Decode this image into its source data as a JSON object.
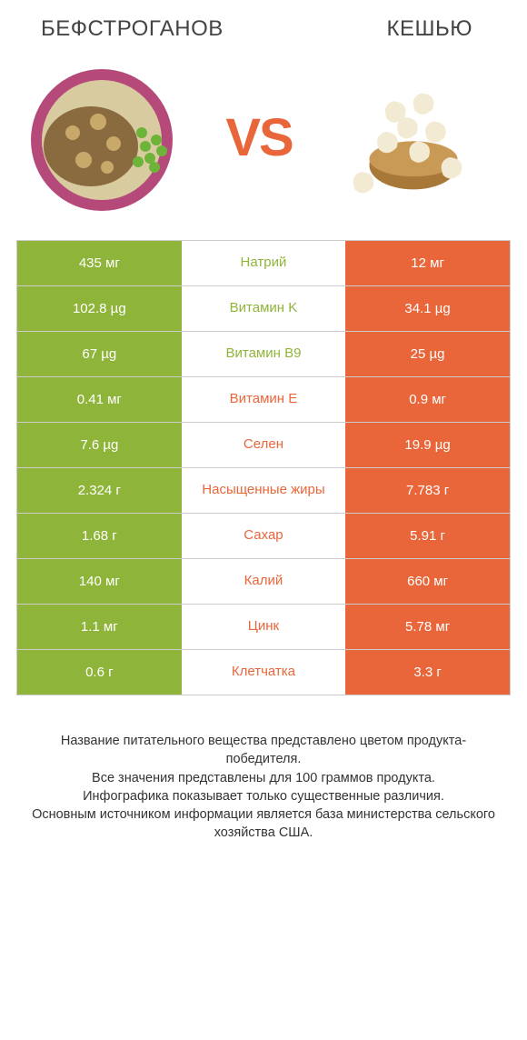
{
  "colors": {
    "green": "#8fb43a",
    "orange": "#e8663a",
    "green_text": "#8fb43a",
    "orange_text": "#e8663a",
    "border": "#cccccc"
  },
  "header": {
    "left_title": "БЕФСТРОГАНОВ",
    "right_title": "КЕШЬЮ",
    "vs": "VS"
  },
  "rows": [
    {
      "label": "Натрий",
      "left": "435 мг",
      "right": "12 мг",
      "winner": "left"
    },
    {
      "label": "Витамин K",
      "left": "102.8 µg",
      "right": "34.1 µg",
      "winner": "left"
    },
    {
      "label": "Витамин B9",
      "left": "67 µg",
      "right": "25 µg",
      "winner": "left"
    },
    {
      "label": "Витамин E",
      "left": "0.41 мг",
      "right": "0.9 мг",
      "winner": "right"
    },
    {
      "label": "Селен",
      "left": "7.6 µg",
      "right": "19.9 µg",
      "winner": "right"
    },
    {
      "label": "Насыщенные жиры",
      "left": "2.324 г",
      "right": "7.783 г",
      "winner": "right"
    },
    {
      "label": "Сахар",
      "left": "1.68 г",
      "right": "5.91 г",
      "winner": "right"
    },
    {
      "label": "Калий",
      "left": "140 мг",
      "right": "660 мг",
      "winner": "right"
    },
    {
      "label": "Цинк",
      "left": "1.1 мг",
      "right": "5.78 мг",
      "winner": "right"
    },
    {
      "label": "Клетчатка",
      "left": "0.6 г",
      "right": "3.3 г",
      "winner": "right"
    }
  ],
  "footer": {
    "line1": "Название питательного вещества представлено цветом продукта-победителя.",
    "line2": "Все значения представлены для 100 граммов продукта.",
    "line3": "Инфографика показывает только существенные различия.",
    "line4": "Основным источником информации является база министерства сельского хозяйства США."
  }
}
